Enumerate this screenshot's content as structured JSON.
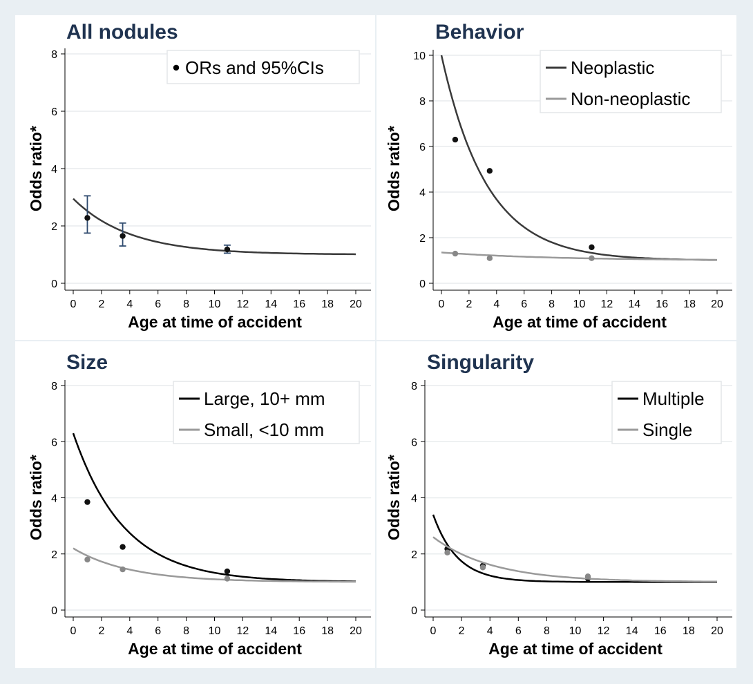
{
  "chart_data": [
    {
      "type": "line",
      "title": "All nodules",
      "xlabel": "Age at time of accident",
      "ylabel": "Odds ratio*",
      "xlim": [
        0,
        20
      ],
      "ylim": [
        0,
        8
      ],
      "xticks": [
        "0",
        "2",
        "4",
        "6",
        "8",
        "10",
        "12",
        "14",
        "16",
        "18",
        "20"
      ],
      "yticks": [
        "0",
        "2",
        "4",
        "6",
        "8"
      ],
      "grid": true,
      "legend": {
        "placement": "top-right",
        "entries": [
          {
            "label": "ORs and 95%CIs",
            "marker": "dot",
            "color": "#000000"
          }
        ]
      },
      "series": [
        {
          "curve": {
            "y0": 2.95,
            "tau": 4.0
          },
          "color": "#3a3a3a",
          "points": [
            {
              "x": 1.0,
              "y": 2.28,
              "lo": 1.75,
              "hi": 3.05
            },
            {
              "x": 3.5,
              "y": 1.65,
              "lo": 1.3,
              "hi": 2.1
            },
            {
              "x": 10.9,
              "y": 1.18,
              "lo": 1.05,
              "hi": 1.33
            }
          ],
          "point_color": "#111111",
          "errorbar_color": "#2e4a6e"
        }
      ]
    },
    {
      "type": "line",
      "title": "Behavior",
      "xlabel": "Age at time of accident",
      "ylabel": "Odds ratio*",
      "xlim": [
        0,
        20
      ],
      "ylim": [
        0,
        10
      ],
      "xticks": [
        "0",
        "2",
        "4",
        "6",
        "8",
        "10",
        "12",
        "14",
        "16",
        "18",
        "20"
      ],
      "yticks": [
        "0",
        "2",
        "4",
        "6",
        "8",
        "10"
      ],
      "grid": true,
      "legend": {
        "placement": "top-right",
        "entries": [
          {
            "label": "Neoplastic",
            "color": "#3a3a3a"
          },
          {
            "label": "Non-neoplastic",
            "color": "#9a9a9a"
          }
        ]
      },
      "series": [
        {
          "name": "Neoplastic",
          "color": "#3a3a3a",
          "point_color": "#111111",
          "curve": {
            "y0": 10.0,
            "tau": 3.3
          },
          "points": [
            {
              "x": 1.0,
              "y": 6.3
            },
            {
              "x": 3.5,
              "y": 4.93
            },
            {
              "x": 10.9,
              "y": 1.58
            }
          ]
        },
        {
          "name": "Non-neoplastic",
          "color": "#9a9a9a",
          "point_color": "#888888",
          "curve": {
            "y0": 1.35,
            "tau": 8.0
          },
          "points": [
            {
              "x": 1.0,
              "y": 1.3
            },
            {
              "x": 3.5,
              "y": 1.1
            },
            {
              "x": 10.9,
              "y": 1.1
            }
          ]
        }
      ]
    },
    {
      "type": "line",
      "title": "Size",
      "xlabel": "Age at time of accident",
      "ylabel": "Odds ratio*",
      "xlim": [
        0,
        20
      ],
      "ylim": [
        0,
        8
      ],
      "xticks": [
        "0",
        "2",
        "4",
        "6",
        "8",
        "10",
        "12",
        "14",
        "16",
        "18",
        "20"
      ],
      "yticks": [
        "0",
        "2",
        "4",
        "6",
        "8"
      ],
      "grid": true,
      "legend": {
        "placement": "top-right",
        "entries": [
          {
            "label": "Large, 10+ mm",
            "color": "#000000"
          },
          {
            "label": "Small, <10 mm",
            "color": "#9a9a9a"
          }
        ]
      },
      "series": [
        {
          "name": "Large, 10+ mm",
          "color": "#000000",
          "point_color": "#111111",
          "curve": {
            "y0": 6.3,
            "tau": 3.6
          },
          "points": [
            {
              "x": 1.0,
              "y": 3.85
            },
            {
              "x": 3.5,
              "y": 2.25
            },
            {
              "x": 10.9,
              "y": 1.38
            }
          ]
        },
        {
          "name": "Small, <10 mm",
          "color": "#9a9a9a",
          "point_color": "#888888",
          "curve": {
            "y0": 2.2,
            "tau": 4.0
          },
          "points": [
            {
              "x": 1.0,
              "y": 1.8
            },
            {
              "x": 3.5,
              "y": 1.45
            },
            {
              "x": 10.9,
              "y": 1.12
            }
          ]
        }
      ]
    },
    {
      "type": "line",
      "title": "Singularity",
      "xlabel": "Age at time of accident",
      "ylabel": "Odds ratio*",
      "xlim": [
        0,
        20
      ],
      "ylim": [
        0,
        8
      ],
      "xticks": [
        "0",
        "2",
        "4",
        "6",
        "8",
        "10",
        "12",
        "14",
        "16",
        "18",
        "20"
      ],
      "yticks": [
        "0",
        "2",
        "4",
        "6",
        "8"
      ],
      "grid": true,
      "legend": {
        "placement": "top-right",
        "entries": [
          {
            "label": "Multiple",
            "color": "#000000"
          },
          {
            "label": "Single",
            "color": "#9a9a9a"
          }
        ]
      },
      "series": [
        {
          "name": "Multiple",
          "color": "#000000",
          "point_color": "#111111",
          "curve": {
            "y0": 3.4,
            "tau": 1.7
          },
          "points": [
            {
              "x": 1.0,
              "y": 2.18
            },
            {
              "x": 3.5,
              "y": 1.58
            },
            {
              "x": 10.9,
              "y": 1.12
            }
          ]
        },
        {
          "name": "Single",
          "color": "#9a9a9a",
          "point_color": "#888888",
          "curve": {
            "y0": 2.6,
            "tau": 4.2
          },
          "points": [
            {
              "x": 1.0,
              "y": 2.05
            },
            {
              "x": 3.5,
              "y": 1.52
            },
            {
              "x": 10.9,
              "y": 1.2
            }
          ]
        }
      ]
    }
  ]
}
